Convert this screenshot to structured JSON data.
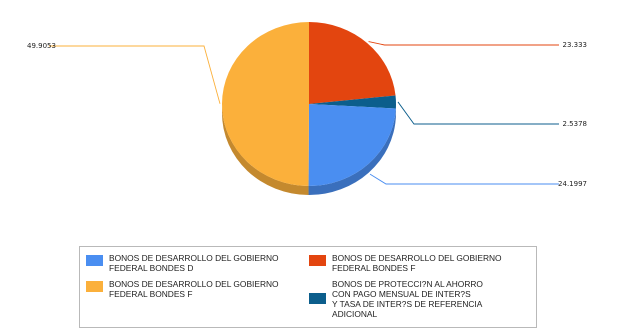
{
  "chart_data": {
    "type": "pie",
    "slices": [
      {
        "label": "BONOS DE DESARROLLO DEL GOBIERNO\nFEDERAL BONDES F",
        "value": 23.333,
        "value_label": "23.333",
        "color": "#E3450F"
      },
      {
        "label": "BONOS DE PROTECCI?N AL AHORRO\nCON PAGO MENSUAL DE INTER?S\nY TASA DE INTER?S DE REFERENCIA\nADICIONAL",
        "value": 2.5378,
        "value_label": "2.5378",
        "color": "#0C5E8C"
      },
      {
        "label": "BONOS DE DESARROLLO DEL GOBIERNO\nFEDERAL BONDES D",
        "value": 24.1997,
        "value_label": "24.1997",
        "color": "#4A8EF1"
      },
      {
        "label": "BONOS DE DESARROLLO DEL GOBIERNO\nFEDERAL BONDES F",
        "value": 49.9053,
        "value_label": "49.9053",
        "color": "#FBB03B"
      }
    ],
    "legend": {
      "placement": "bottom",
      "entries": [
        {
          "label": "BONOS DE DESARROLLO DEL GOBIERNO\nFEDERAL BONDES D",
          "color": "#4A8EF1"
        },
        {
          "label": "BONOS DE DESARROLLO DEL GOBIERNO\nFEDERAL BONDES F",
          "color": "#E3450F"
        },
        {
          "label": "BONOS DE DESARROLLO DEL GOBIERNO\nFEDERAL BONDES F",
          "color": "#FBB03B"
        },
        {
          "label": "BONOS DE PROTECCI?N AL AHORRO\nCON PAGO MENSUAL DE INTER?S\nY TASA DE INTER?S DE REFERENCIA\nADICIONAL",
          "color": "#0C5E8C"
        }
      ]
    },
    "style": "3d"
  }
}
